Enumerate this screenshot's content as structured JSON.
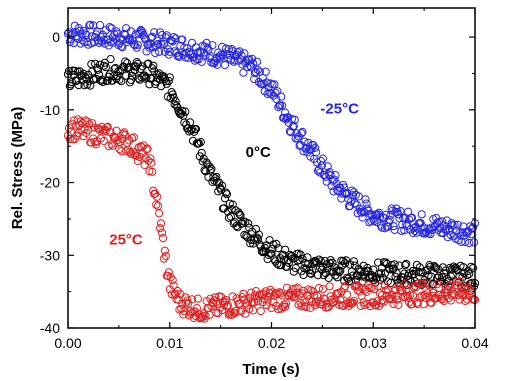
{
  "chart_data": {
    "type": "scatter",
    "xlabel": "Time (s)",
    "ylabel": "Rel. Stress (MPa)",
    "xlim": [
      0,
      0.04
    ],
    "ylim": [
      -40,
      4
    ],
    "x_ticks": [
      0.0,
      0.01,
      0.02,
      0.03,
      0.04
    ],
    "x_tick_labels": [
      "0.00",
      "0.01",
      "0.02",
      "0.03",
      "0.04"
    ],
    "y_ticks": [
      0,
      -10,
      -20,
      -30,
      -40
    ],
    "y_tick_labels": [
      "0",
      "-10",
      "-20",
      "-30",
      "-40"
    ],
    "grid": false,
    "legend": "none",
    "marker": "open-circle",
    "series": [
      {
        "name": "-25°C",
        "color": "#2626e0",
        "anchors": [
          [
            0.0,
            0.5
          ],
          [
            0.005,
            0.0
          ],
          [
            0.01,
            -1.0
          ],
          [
            0.015,
            -2.5
          ],
          [
            0.018,
            -4.0
          ],
          [
            0.02,
            -7.0
          ],
          [
            0.022,
            -12.0
          ],
          [
            0.024,
            -16.0
          ],
          [
            0.026,
            -20.0
          ],
          [
            0.028,
            -22.5
          ],
          [
            0.03,
            -24.5
          ],
          [
            0.034,
            -25.5
          ],
          [
            0.038,
            -26.5
          ],
          [
            0.04,
            -27.0
          ]
        ]
      },
      {
        "name": "0°C",
        "color": "#000000",
        "anchors": [
          [
            0.0,
            -6.0
          ],
          [
            0.004,
            -4.5
          ],
          [
            0.008,
            -5.0
          ],
          [
            0.01,
            -7.0
          ],
          [
            0.012,
            -12.0
          ],
          [
            0.014,
            -19.0
          ],
          [
            0.016,
            -24.0
          ],
          [
            0.018,
            -27.0
          ],
          [
            0.02,
            -29.5
          ],
          [
            0.022,
            -31.0
          ],
          [
            0.026,
            -32.0
          ],
          [
            0.032,
            -32.5
          ],
          [
            0.04,
            -33.0
          ]
        ]
      },
      {
        "name": "25°C",
        "color": "#e02020",
        "anchors": [
          [
            0.0,
            -12.5
          ],
          [
            0.002,
            -13.0
          ],
          [
            0.006,
            -14.5
          ],
          [
            0.008,
            -17.0
          ],
          [
            0.009,
            -25.0
          ],
          [
            0.0095,
            -30.0
          ],
          [
            0.01,
            -34.0
          ],
          [
            0.011,
            -36.5
          ],
          [
            0.013,
            -37.5
          ],
          [
            0.02,
            -36.0
          ],
          [
            0.03,
            -35.5
          ],
          [
            0.04,
            -35.0
          ]
        ]
      }
    ],
    "annotations": [
      {
        "text": "-25°C",
        "x": 0.0267,
        "y": -10.5,
        "color": "#2626e0"
      },
      {
        "text": "0°C",
        "x": 0.0187,
        "y": -16.5,
        "color": "#000000"
      },
      {
        "text": "25°C",
        "x": 0.0057,
        "y": -28.5,
        "color": "#e02020"
      }
    ]
  }
}
